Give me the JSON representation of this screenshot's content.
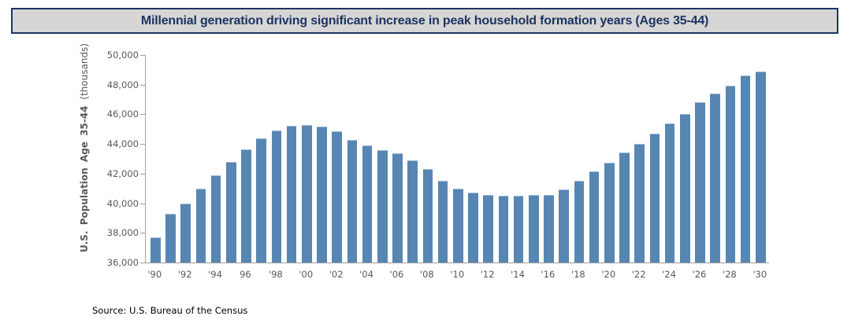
{
  "title": "Millennial generation driving significant increase in peak household formation years (Ages 35-44)",
  "source": "Source: U.S. Bureau of the Census",
  "y_axis": {
    "label_bold": "U.S. Population Age 35-44",
    "label_regular": "(thousands)",
    "ticks": [
      "50,000",
      "48,000",
      "46,000",
      "44,000",
      "42,000",
      "40,000",
      "38,000",
      "36,000"
    ]
  },
  "colors": {
    "bar": "#5786b3",
    "bar_cap": "#9fbcd4",
    "title_text": "#1e3461",
    "title_border": "#1e3461",
    "title_bg": "#d6d6d6",
    "axis_text": "#595959",
    "axis_line": "#9e9e9e"
  },
  "chart_data": {
    "type": "bar",
    "title": "Millennial generation driving significant increase in peak household formation years (Ages 35-44)",
    "xlabel": "",
    "ylabel": "U.S. Population Age 35-44 (thousands)",
    "ylim": [
      36000,
      50000
    ],
    "ytick_step": 2000,
    "grid": false,
    "legend": false,
    "x": [
      1990,
      1991,
      1992,
      1993,
      1994,
      1995,
      1996,
      1997,
      1998,
      1999,
      2000,
      2001,
      2002,
      2003,
      2004,
      2005,
      2006,
      2007,
      2008,
      2009,
      2010,
      2011,
      2012,
      2013,
      2014,
      2015,
      2016,
      2017,
      2018,
      2019,
      2020,
      2021,
      2022,
      2023,
      2024,
      2025,
      2026,
      2027,
      2028,
      2029,
      2030
    ],
    "values": [
      37700,
      39300,
      40000,
      41000,
      41900,
      42800,
      43650,
      44400,
      44900,
      45250,
      45300,
      45200,
      44850,
      44300,
      43900,
      43600,
      43350,
      42900,
      42300,
      41500,
      41000,
      40700,
      40550,
      40500,
      40500,
      40550,
      40550,
      40950,
      41500,
      42150,
      42750,
      43400,
      44000,
      44700,
      45400,
      46050,
      46800,
      47400,
      47950,
      48600,
      48900
    ],
    "x_tick_labels": [
      "'90",
      "'92",
      "'94",
      "96",
      "'98",
      "'00",
      "'02",
      "'04",
      "'06",
      "'08",
      "'10",
      "'12",
      "'14",
      "'16",
      "'18",
      "'20",
      "'22",
      "'24",
      "'26",
      "'28",
      "'30"
    ]
  }
}
